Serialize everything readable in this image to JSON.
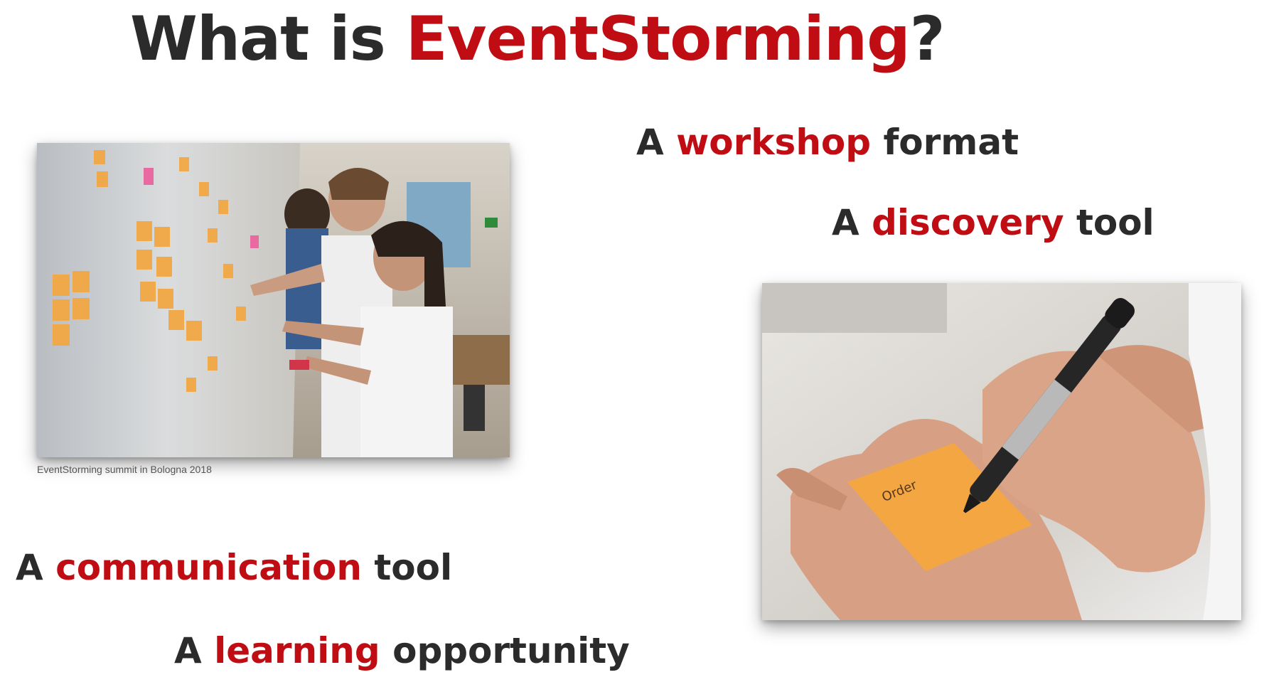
{
  "title": {
    "prefix": "What is ",
    "highlight": "EventStorming",
    "suffix": "?"
  },
  "phrases": [
    {
      "prefix": "A ",
      "highlight": "workshop",
      "suffix": " format"
    },
    {
      "prefix": "A ",
      "highlight": "discovery",
      "suffix": " tool"
    },
    {
      "prefix": "A ",
      "highlight": "communication",
      "suffix": " tool"
    },
    {
      "prefix": "A ",
      "highlight": "learning",
      "suffix": " opportunity"
    }
  ],
  "images": {
    "left": {
      "caption": "EventStorming summit in Bologna 2018",
      "subject": "people-at-sticky-note-wall"
    },
    "right": {
      "subject": "hand-writing-on-sticky-note",
      "note_text": "Order"
    }
  },
  "colors": {
    "accent": "#c00d14",
    "text": "#2b2b2b",
    "sticky": "#f3a74b",
    "background": "#ffffff"
  }
}
